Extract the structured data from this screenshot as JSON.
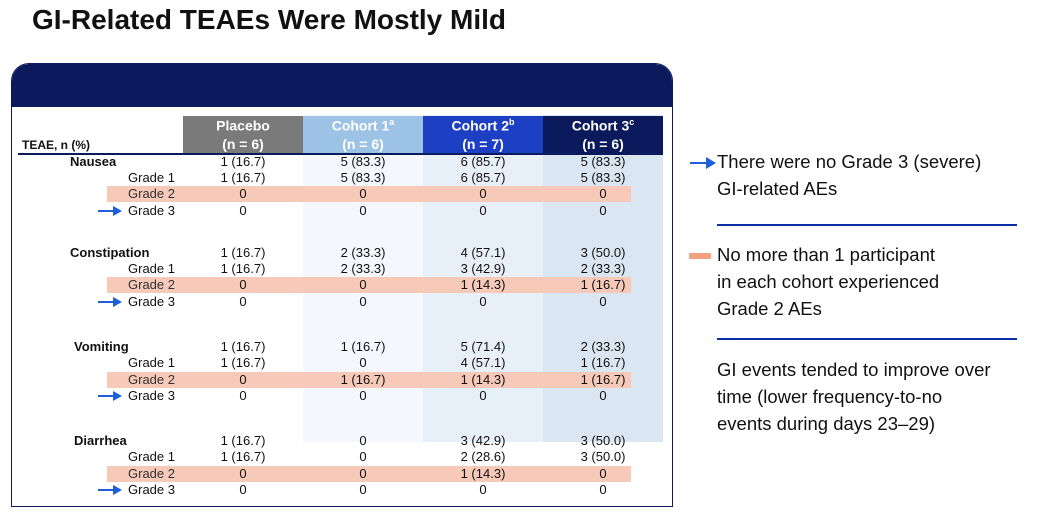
{
  "title": "GI-Related TEAEs Were Mostly Mild",
  "table": {
    "row_header": "TEAE, n (%)",
    "columns": [
      {
        "name": "Placebo",
        "n": "(n = 6)",
        "sup": ""
      },
      {
        "name": "Cohort 1",
        "n": "(n = 6)",
        "sup": "a"
      },
      {
        "name": "Cohort 2",
        "n": "(n = 7)",
        "sup": "b"
      },
      {
        "name": "Cohort 3",
        "n": "(n = 6)",
        "sup": "c"
      }
    ],
    "groups": [
      {
        "name": "Nausea",
        "total": [
          "1 (16.7)",
          "5 (83.3)",
          "6 (85.7)",
          "5 (83.3)"
        ],
        "grade1": [
          "1 (16.7)",
          "5 (83.3)",
          "6 (85.7)",
          "5 (83.3)"
        ],
        "grade2": [
          "0",
          "0",
          "0",
          "0"
        ],
        "grade3": [
          "0",
          "0",
          "0",
          "0"
        ]
      },
      {
        "name": "Constipation",
        "total": [
          "1 (16.7)",
          "2 (33.3)",
          "4 (57.1)",
          "3 (50.0)"
        ],
        "grade1": [
          "1 (16.7)",
          "2 (33.3)",
          "3 (42.9)",
          "2 (33.3)"
        ],
        "grade2": [
          "0",
          "0",
          "1 (14.3)",
          "1 (16.7)"
        ],
        "grade3": [
          "0",
          "0",
          "0",
          "0"
        ]
      },
      {
        "name": "Vomiting",
        "total": [
          "1 (16.7)",
          "1 (16.7)",
          "5 (71.4)",
          "2 (33.3)"
        ],
        "grade1": [
          "1 (16.7)",
          "0",
          "4 (57.1)",
          "1 (16.7)"
        ],
        "grade2": [
          "0",
          "1 (16.7)",
          "1 (14.3)",
          "1 (16.7)"
        ],
        "grade3": [
          "0",
          "0",
          "0",
          "0"
        ]
      },
      {
        "name": "Diarrhea",
        "total": [
          "1 (16.7)",
          "0",
          "3 (42.9)",
          "3 (50.0)"
        ],
        "grade1": [
          "1 (16.7)",
          "0",
          "2 (28.6)",
          "3 (50.0)"
        ],
        "grade2": [
          "0",
          "0",
          "1 (14.3)",
          "0"
        ],
        "grade3": [
          "0",
          "0",
          "0",
          "0"
        ]
      }
    ],
    "grade_labels": {
      "g1": "Grade 1",
      "g2": "Grade 2",
      "g3": "Grade 3"
    }
  },
  "bullets": {
    "b1": [
      "There were no Grade 3 (severe)",
      "GI-related AEs"
    ],
    "b2": [
      "No more than 1 participant",
      "in each cohort experienced",
      "Grade 2 AEs"
    ],
    "b3": [
      "GI events tended to improve over",
      "time (lower frequency-to-no",
      "events during days 23–29)"
    ]
  },
  "colors": {
    "navy": "#0a1a5c",
    "placebo_header": "#7a7a7a",
    "cohort1_header": "#9cc2e6",
    "cohort2_header": "#1c3fc4",
    "grade2_highlight": "#f6c9b8",
    "arrow_blue": "#1c5fd8",
    "bullet_orange": "#f3a07f"
  }
}
